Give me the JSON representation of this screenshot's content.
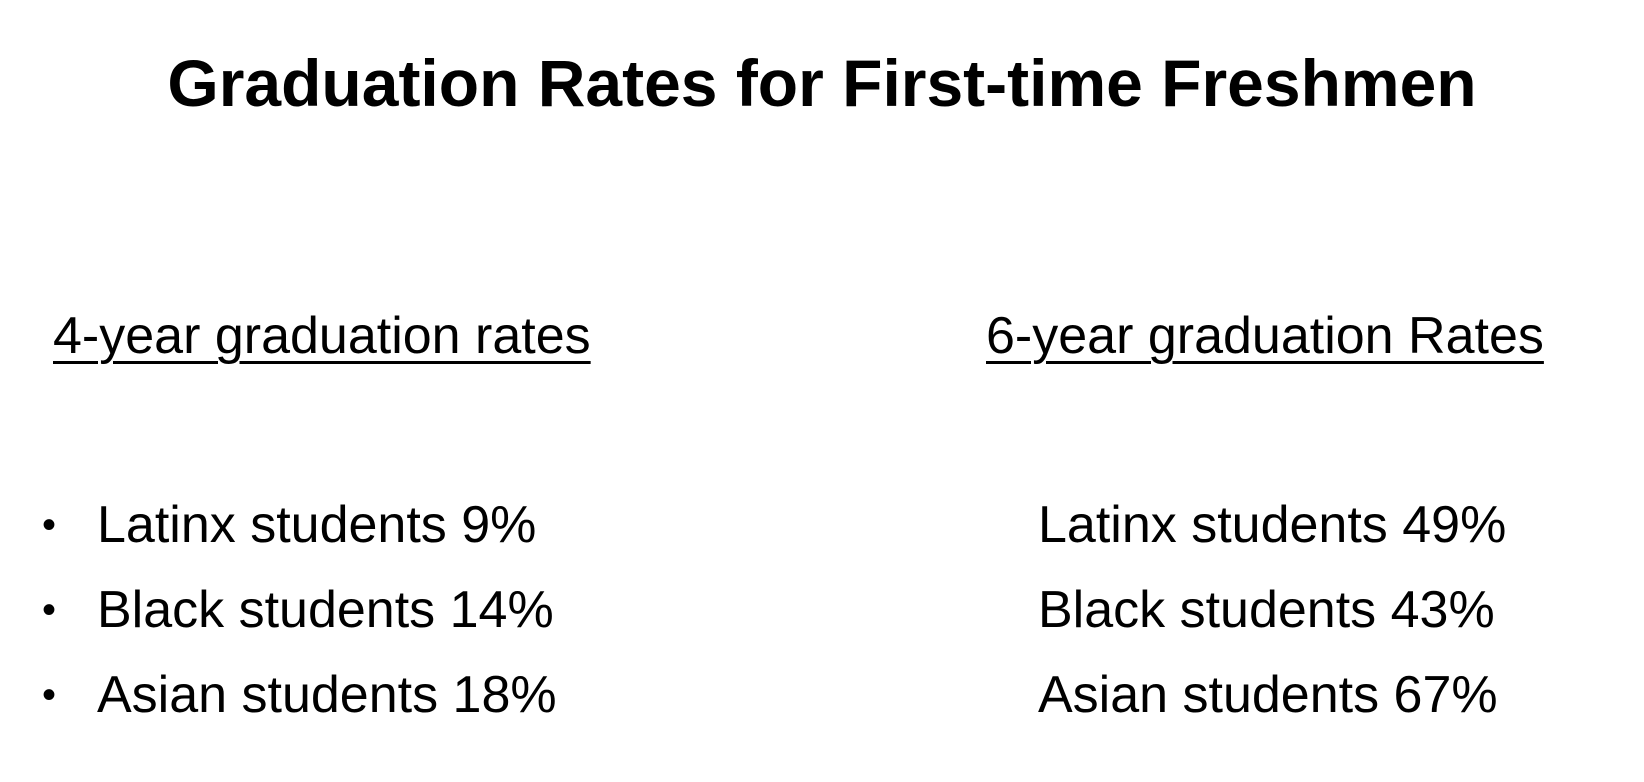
{
  "title": "Graduation Rates for First-time Freshmen",
  "left_column": {
    "heading": "4-year graduation rates",
    "items": [
      {
        "label": "Latinx students 9%"
      },
      {
        "label": "Black students 14%"
      },
      {
        "label": "Asian students 18%"
      }
    ],
    "bullet": "•"
  },
  "right_column": {
    "heading": "6-year graduation Rates",
    "items": [
      {
        "label": "Latinx students 49%"
      },
      {
        "label": "Black students 43%"
      },
      {
        "label": "Asian students 67%"
      }
    ]
  }
}
